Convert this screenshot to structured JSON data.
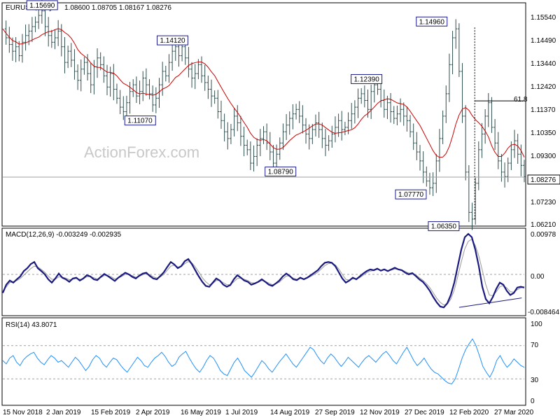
{
  "chart_data": {
    "type": "line",
    "instrument_header": "EURUSD,Daily",
    "ohlc_header": "1.08600 1.08705 1.08167 1.08276",
    "watermark": "ActionForex.com",
    "x_labels": [
      "15 Nov 2018",
      "2 Jan 2019",
      "15 Feb 2019",
      "2 Apr 2019",
      "16 May 2019",
      "1 Jul 2019",
      "14 Aug 2019",
      "27 Sep 2019",
      "12 Nov 2019",
      "27 Dec 2019",
      "12 Feb 2020",
      "27 Mar 2020"
    ],
    "price_panel": {
      "y_ticks": [
        "1.15540",
        "1.14490",
        "1.13440",
        "1.12420",
        "1.11370",
        "1.10350",
        "1.09300",
        "1.08276",
        "1.07230",
        "1.06210"
      ],
      "last_price": "1.08276",
      "fib_label": "61.8",
      "fib_level": 1.1168,
      "ylim": [
        1.0615,
        1.16
      ],
      "annotations": [
        {
          "label": "1.15690",
          "x": 0.105,
          "y": 1.1569
        },
        {
          "label": "1.11070",
          "x": 0.293,
          "y": 1.1107
        },
        {
          "label": "1.14120",
          "x": 0.355,
          "y": 1.1412
        },
        {
          "label": "1.08790",
          "x": 0.562,
          "y": 1.0879
        },
        {
          "label": "1.12390",
          "x": 0.727,
          "y": 1.1239
        },
        {
          "label": "1.07770",
          "x": 0.812,
          "y": 1.0777
        },
        {
          "label": "1.14960",
          "x": 0.852,
          "y": 1.1496
        },
        {
          "label": "1.06350",
          "x": 0.875,
          "y": 1.0635
        }
      ],
      "close_series": [
        1.149,
        1.145,
        1.142,
        1.139,
        1.141,
        1.137,
        1.143,
        1.146,
        1.148,
        1.15,
        1.152,
        1.155,
        1.157,
        1.15,
        1.146,
        1.143,
        1.145,
        1.148,
        1.141,
        1.134,
        1.139,
        1.135,
        1.13,
        1.126,
        1.131,
        1.134,
        1.129,
        1.124,
        1.132,
        1.136,
        1.133,
        1.128,
        1.123,
        1.129,
        1.122,
        1.118,
        1.114,
        1.112,
        1.116,
        1.121,
        1.124,
        1.119,
        1.121,
        1.127,
        1.124,
        1.12,
        1.115,
        1.118,
        1.124,
        1.13,
        1.128,
        1.134,
        1.139,
        1.141,
        1.137,
        1.141,
        1.136,
        1.131,
        1.127,
        1.129,
        1.133,
        1.128,
        1.125,
        1.122,
        1.119,
        1.118,
        1.112,
        1.108,
        1.103,
        1.1,
        1.104,
        1.11,
        1.107,
        1.101,
        1.097,
        1.095,
        1.089,
        1.092,
        1.097,
        1.1,
        1.103,
        1.098,
        1.094,
        1.089,
        1.093,
        1.098,
        1.103,
        1.106,
        1.109,
        1.111,
        1.113,
        1.11,
        1.106,
        1.102,
        1.1,
        1.104,
        1.107,
        1.104,
        1.1,
        1.097,
        1.099,
        1.102,
        1.105,
        1.108,
        1.104,
        1.105,
        1.108,
        1.111,
        1.114,
        1.118,
        1.12,
        1.117,
        1.113,
        1.121,
        1.124,
        1.122,
        1.117,
        1.113,
        1.116,
        1.112,
        1.109,
        1.111,
        1.113,
        1.11,
        1.108,
        1.103,
        1.098,
        1.094,
        1.09,
        1.085,
        1.081,
        1.078,
        1.08,
        1.09,
        1.1,
        1.11,
        1.12,
        1.133,
        1.145,
        1.149,
        1.13,
        1.11,
        1.085,
        1.067,
        1.064,
        1.08,
        1.095,
        1.102,
        1.11,
        1.116,
        1.105,
        1.098,
        1.09,
        1.085,
        1.083,
        1.089,
        1.095,
        1.099,
        1.093,
        1.088,
        1.083
      ]
    },
    "macd_panel": {
      "header": "MACD(12,26,9) -0.003249 -0.002935",
      "y_ticks": [
        "0.00978",
        "0.00",
        "-0.008464"
      ],
      "ylim": [
        -0.0095,
        0.0105
      ],
      "series": [
        -0.0045,
        -0.0025,
        -0.0015,
        -0.002,
        -0.0012,
        -0.0005,
        0.0008,
        0.0015,
        0.0025,
        0.003,
        0.0015,
        0.0008,
        0.0,
        -0.0012,
        -0.002,
        -0.001,
        0.0002,
        -0.0008,
        -0.0012,
        -0.0018,
        -0.001,
        -0.0008,
        -0.0015,
        -0.001,
        -0.0002,
        -0.0005,
        -0.0012,
        -0.0014,
        -0.0006,
        0.0001,
        -0.0004,
        -0.001,
        -0.0016,
        -0.0008,
        -0.0002,
        0.0004,
        0.0,
        -0.0006,
        -0.001,
        -0.0003,
        0.0002,
        0.0004,
        -0.0004,
        -0.001,
        -0.0012,
        -0.0004,
        0.0005,
        0.0018,
        0.003,
        0.0024,
        0.0015,
        0.002,
        0.0032,
        0.0037,
        0.0025,
        0.001,
        -0.0005,
        -0.0018,
        -0.0028,
        -0.003,
        -0.002,
        -0.001,
        -0.0015,
        -0.0025,
        -0.003,
        -0.0026,
        -0.0012,
        -0.0002,
        -0.0008,
        -0.0015,
        -0.0018,
        -0.0025,
        -0.0022,
        -0.0018,
        -0.0012,
        -0.0018,
        -0.0025,
        -0.0028,
        -0.0022,
        -0.0015,
        -0.0005,
        0.0002,
        -0.0004,
        -0.0012,
        -0.0014,
        -0.0008,
        -0.0012,
        -0.0008,
        -0.0002,
        0.0004,
        0.001,
        0.002,
        0.0028,
        0.003,
        0.0028,
        0.002,
        0.0005,
        -0.001,
        -0.002,
        -0.0015,
        -0.0008,
        -0.0012,
        -0.0005,
        0.0002,
        0.0008,
        0.0012,
        0.001,
        0.0014,
        0.0009,
        0.0012,
        0.0008,
        0.0012,
        0.0016,
        0.0012,
        0.001,
        0.0004,
        0.0,
        0.0003,
        -0.0004,
        -0.0012,
        -0.0018,
        -0.0028,
        -0.004,
        -0.0055,
        -0.0068,
        -0.0078,
        -0.008,
        -0.007,
        -0.005,
        -0.002,
        0.002,
        0.006,
        0.009,
        0.0098,
        0.009,
        0.006,
        0.002,
        -0.003,
        -0.006,
        -0.007,
        -0.0055,
        -0.0035,
        -0.002,
        -0.0025,
        -0.004,
        -0.005,
        -0.0045,
        -0.0032,
        -0.003,
        -0.0032
      ],
      "signal": [
        -0.004,
        -0.003,
        -0.002,
        -0.0018,
        -0.0015,
        -0.001,
        -0.0002,
        0.0006,
        0.0014,
        0.002,
        0.0018,
        0.0012,
        0.0005,
        -0.0004,
        -0.0012,
        -0.0012,
        -0.0006,
        -0.0007,
        -0.0009,
        -0.0013,
        -0.0012,
        -0.001,
        -0.0012,
        -0.0011,
        -0.0006,
        -0.0005,
        -0.0008,
        -0.0011,
        -0.0008,
        -0.0003,
        -0.0003,
        -0.0006,
        -0.0011,
        -0.0009,
        -0.0005,
        0.0,
        0.0,
        -0.0003,
        -0.0007,
        -0.0005,
        -0.0001,
        0.0002,
        -0.0001,
        -0.0006,
        -0.0009,
        -0.0006,
        0.0,
        0.001,
        0.002,
        0.0022,
        0.0018,
        0.0019,
        0.0026,
        0.0031,
        0.0028,
        0.0018,
        0.0006,
        -0.0008,
        -0.0018,
        -0.0025,
        -0.0022,
        -0.0015,
        -0.0015,
        -0.002,
        -0.0025,
        -0.0025,
        -0.0018,
        -0.001,
        -0.0009,
        -0.0012,
        -0.0015,
        -0.002,
        -0.0021,
        -0.0019,
        -0.0015,
        -0.0017,
        -0.0021,
        -0.0025,
        -0.0023,
        -0.0019,
        -0.0011,
        -0.0004,
        -0.0004,
        -0.0009,
        -0.0012,
        -0.001,
        -0.0011,
        -0.0009,
        -0.0005,
        0.0,
        0.0005,
        0.0013,
        0.0021,
        0.0026,
        0.0027,
        0.0023,
        0.0013,
        0.0,
        -0.0012,
        -0.0014,
        -0.0011,
        -0.0011,
        -0.0008,
        -0.0002,
        0.0004,
        0.0008,
        0.0009,
        0.0012,
        0.001,
        0.0011,
        0.0009,
        0.001,
        0.0013,
        0.0012,
        0.0011,
        0.0007,
        0.0003,
        0.0003,
        -0.0001,
        -0.0008,
        -0.0014,
        -0.0022,
        -0.0032,
        -0.0045,
        -0.0058,
        -0.0068,
        -0.0074,
        -0.0072,
        -0.006,
        -0.0038,
        -0.0005,
        0.003,
        0.0062,
        0.008,
        0.0085,
        0.007,
        0.0045,
        0.001,
        -0.0025,
        -0.005,
        -0.0052,
        -0.0042,
        -0.003,
        -0.0027,
        -0.0033,
        -0.0042,
        -0.0043,
        -0.0037,
        -0.0033,
        -0.003
      ]
    },
    "rsi_panel": {
      "header": "RSI(14) 43.8071",
      "y_ticks": [
        "100",
        "70",
        "30",
        "0"
      ],
      "ylim": [
        0,
        100
      ],
      "levels": [
        70,
        30
      ],
      "series": [
        52,
        48,
        55,
        58,
        50,
        46,
        53,
        57,
        60,
        62,
        55,
        50,
        47,
        53,
        58,
        55,
        50,
        52,
        48,
        44,
        50,
        56,
        52,
        46,
        40,
        45,
        53,
        58,
        55,
        48,
        44,
        50,
        55,
        53,
        47,
        42,
        38,
        44,
        50,
        56,
        52,
        46,
        44,
        50,
        55,
        58,
        62,
        57,
        50,
        45,
        48,
        56,
        60,
        63,
        55,
        48,
        42,
        38,
        44,
        52,
        58,
        55,
        48,
        40,
        36,
        34,
        42,
        50,
        55,
        48,
        40,
        36,
        32,
        38,
        45,
        52,
        48,
        42,
        38,
        44,
        50,
        55,
        60,
        54,
        48,
        44,
        50,
        56,
        62,
        68,
        65,
        58,
        52,
        48,
        55,
        60,
        56,
        50,
        45,
        50,
        56,
        52,
        48,
        44,
        50,
        55,
        58,
        54,
        50,
        55,
        60,
        63,
        58,
        52,
        48,
        55,
        62,
        68,
        60,
        52,
        46,
        50,
        55,
        48,
        42,
        38,
        36,
        32,
        28,
        25,
        24,
        30,
        42,
        55,
        65,
        72,
        78,
        70,
        58,
        45,
        38,
        32,
        40,
        52,
        58,
        50,
        44,
        48,
        54,
        50,
        46,
        44
      ]
    }
  }
}
